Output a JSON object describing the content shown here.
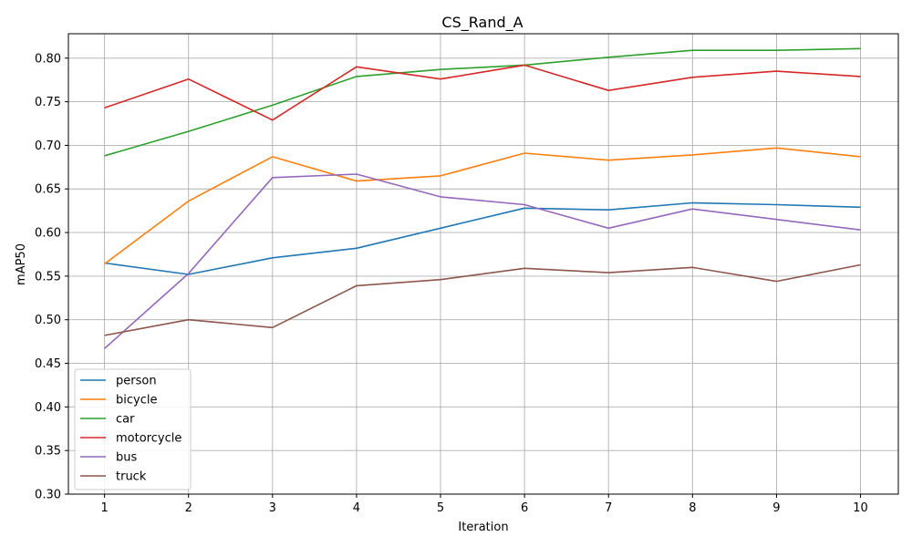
{
  "chart_data": {
    "type": "line",
    "title": "CS_Rand_A",
    "xlabel": "Iteration",
    "ylabel": "mAP50",
    "x": [
      1,
      2,
      3,
      4,
      5,
      6,
      7,
      8,
      9,
      10
    ],
    "xlim": [
      0.57,
      10.45
    ],
    "ylim": [
      0.3,
      0.828
    ],
    "yticks": [
      0.3,
      0.35,
      0.4,
      0.45,
      0.5,
      0.55,
      0.6,
      0.65,
      0.7,
      0.75,
      0.8
    ],
    "ytick_labels": [
      "0.30",
      "0.35",
      "0.40",
      "0.45",
      "0.50",
      "0.55",
      "0.60",
      "0.65",
      "0.70",
      "0.75",
      "0.80"
    ],
    "xtick_labels": [
      "1",
      "2",
      "3",
      "4",
      "5",
      "6",
      "7",
      "8",
      "9",
      "10"
    ],
    "grid": true,
    "legend_position": "lower-left",
    "series": [
      {
        "name": "person",
        "color": "#1f77b4",
        "values": [
          0.565,
          0.552,
          0.571,
          0.582,
          0.605,
          0.628,
          0.626,
          0.634,
          0.632,
          0.629
        ]
      },
      {
        "name": "bicycle",
        "color": "#ff7f0e",
        "values": [
          0.564,
          0.636,
          0.687,
          0.659,
          0.665,
          0.691,
          0.683,
          0.689,
          0.697,
          0.687
        ]
      },
      {
        "name": "car",
        "color": "#2ca02c",
        "values": [
          0.688,
          0.716,
          0.746,
          0.779,
          0.787,
          0.792,
          0.801,
          0.809,
          0.809,
          0.811
        ]
      },
      {
        "name": "motorcycle",
        "color": "#d62728",
        "values": [
          0.743,
          0.776,
          0.729,
          0.79,
          0.776,
          0.792,
          0.763,
          0.778,
          0.785,
          0.779
        ]
      },
      {
        "name": "bus",
        "color": "#9467bd",
        "values": [
          0.467,
          0.553,
          0.663,
          0.667,
          0.641,
          0.632,
          0.605,
          0.627,
          0.615,
          0.603
        ]
      },
      {
        "name": "truck",
        "color": "#8c564b",
        "values": [
          0.482,
          0.5,
          0.491,
          0.539,
          0.546,
          0.559,
          0.554,
          0.56,
          0.544,
          0.563
        ]
      }
    ]
  }
}
